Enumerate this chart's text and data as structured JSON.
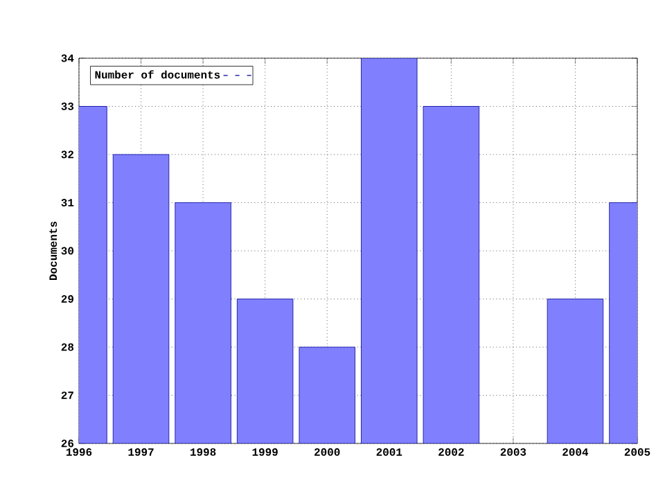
{
  "chart_data": {
    "type": "bar",
    "ylabel": "Documents",
    "x": [
      1996,
      1997,
      1998,
      1999,
      2000,
      2001,
      2002,
      2003,
      2004,
      2005
    ],
    "series": [
      {
        "name": "Number of documents",
        "color": "#8080ff",
        "values": [
          33,
          32,
          31,
          29,
          28,
          34,
          33,
          null,
          29,
          31
        ]
      }
    ],
    "xlim": [
      1996,
      2005
    ],
    "xticks": [
      1996,
      1997,
      1998,
      1999,
      2000,
      2001,
      2002,
      2003,
      2004,
      2005
    ],
    "ylim": [
      26,
      34
    ],
    "yticks": [
      26,
      27,
      28,
      29,
      30,
      31,
      32,
      33,
      34
    ],
    "grid": true,
    "legend": "top left"
  }
}
